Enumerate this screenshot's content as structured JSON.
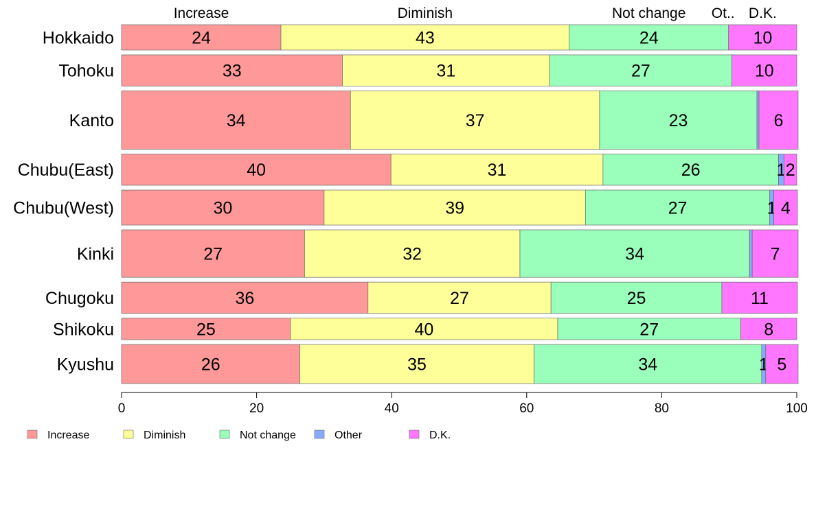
{
  "chart_data": {
    "type": "bar",
    "orientation": "horizontal",
    "stacked": true,
    "categories": [
      "Hokkaido",
      "Tohoku",
      "Kanto",
      "Chubu(East)",
      "Chubu(West)",
      "Kinki",
      "Chugoku",
      "Shikoku",
      "Kyushu"
    ],
    "series": [
      {
        "name": "Increase",
        "color": "#ff9999",
        "values": [
          23.6,
          32.7,
          33.9,
          39.9,
          30.0,
          27.1,
          36.5,
          25.0,
          26.4
        ]
      },
      {
        "name": "Diminish",
        "color": "#ffff99",
        "values": [
          42.7,
          30.7,
          36.9,
          31.4,
          38.7,
          31.9,
          27.1,
          39.6,
          34.7
        ]
      },
      {
        "name": "Not change",
        "color": "#99ffbb",
        "values": [
          23.6,
          27.0,
          23.3,
          26.0,
          27.3,
          34.0,
          25.3,
          27.1,
          33.7
        ]
      },
      {
        "name": "Other",
        "color": "#88aaff",
        "values": [
          0.0,
          0.0,
          0.3,
          0.8,
          0.6,
          0.4,
          0.0,
          0.0,
          0.6
        ]
      },
      {
        "name": "D.K.",
        "color": "#ff77ff",
        "values": [
          10.1,
          9.6,
          5.8,
          1.9,
          3.5,
          6.8,
          11.2,
          8.3,
          4.8
        ]
      }
    ],
    "value_labels": [
      [
        "24",
        "43",
        "24",
        "",
        "10"
      ],
      [
        "33",
        "31",
        "27",
        "",
        "10"
      ],
      [
        "34",
        "37",
        "23",
        "",
        "6"
      ],
      [
        "40",
        "31",
        "26",
        "1",
        "2"
      ],
      [
        "30",
        "39",
        "27",
        "1",
        "4"
      ],
      [
        "27",
        "32",
        "34",
        "",
        "7"
      ],
      [
        "36",
        "27",
        "25",
        "",
        "11"
      ],
      [
        "25",
        "40",
        "27",
        "",
        "8"
      ],
      [
        "26",
        "35",
        "34",
        "1",
        "5"
      ]
    ],
    "row_weights": [
      1.0,
      1.23,
      2.3,
      1.23,
      1.38,
      1.87,
      1.23,
      0.85,
      1.54
    ],
    "top_labels": [
      "Increase",
      "Diminish",
      "Not change",
      "Ot..",
      "D.K."
    ],
    "xlim": [
      0,
      100
    ],
    "xticks": [
      "0",
      "20",
      "40",
      "60",
      "80",
      "100"
    ],
    "grid": false,
    "legend_position": "bottom-left",
    "xlabel": "",
    "ylabel": ""
  }
}
